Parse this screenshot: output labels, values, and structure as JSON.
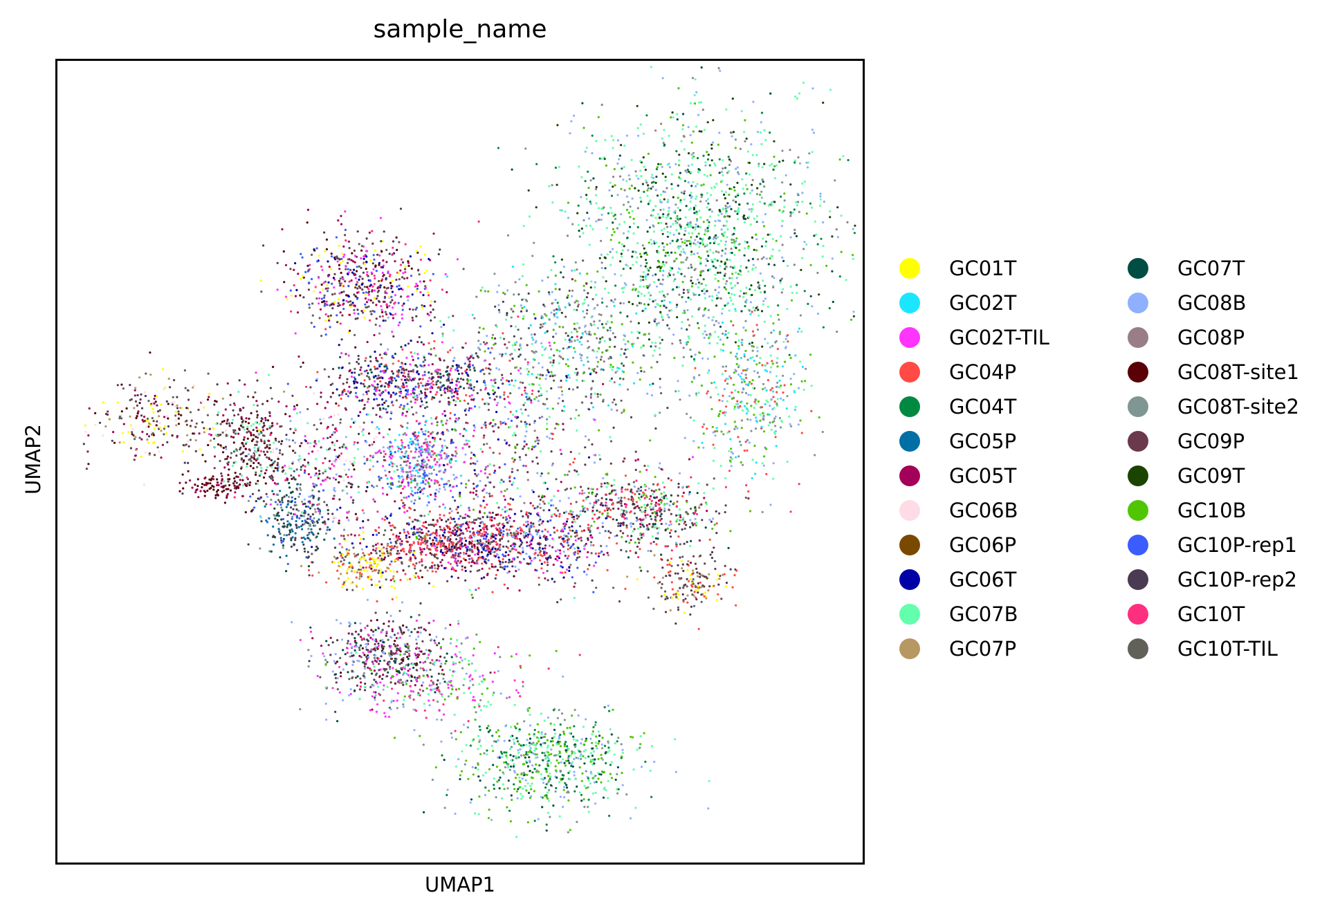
{
  "chart_data": {
    "type": "scatter",
    "title": "sample_name",
    "xlabel": "UMAP1",
    "ylabel": "UMAP2",
    "xticks": [],
    "yticks": [],
    "grid": false,
    "legend_placement": "right, outside plot, two columns",
    "legend": [
      {
        "name": "GC01T",
        "color": "#ffff00"
      },
      {
        "name": "GC02T",
        "color": "#1ce6ff"
      },
      {
        "name": "GC02T-TIL",
        "color": "#ff34ff"
      },
      {
        "name": "GC04P",
        "color": "#ff4a46"
      },
      {
        "name": "GC04T",
        "color": "#008941"
      },
      {
        "name": "GC05P",
        "color": "#006fa6"
      },
      {
        "name": "GC05T",
        "color": "#a30059"
      },
      {
        "name": "GC06B",
        "color": "#ffdbe5"
      },
      {
        "name": "GC06P",
        "color": "#7a4900"
      },
      {
        "name": "GC06T",
        "color": "#0000a6"
      },
      {
        "name": "GC07B",
        "color": "#63ffac"
      },
      {
        "name": "GC07P",
        "color": "#b79762"
      },
      {
        "name": "GC07T",
        "color": "#004d43"
      },
      {
        "name": "GC08B",
        "color": "#8fb0ff"
      },
      {
        "name": "GC08P",
        "color": "#997d87"
      },
      {
        "name": "GC08T-site1",
        "color": "#5a0007"
      },
      {
        "name": "GC08T-site2",
        "color": "#809693"
      },
      {
        "name": "GC09P",
        "color": "#6a3a4c"
      },
      {
        "name": "GC09T",
        "color": "#1b4400"
      },
      {
        "name": "GC10B",
        "color": "#4fc601"
      },
      {
        "name": "GC10P-rep1",
        "color": "#3b5dff"
      },
      {
        "name": "GC10P-rep2",
        "color": "#4a3b53"
      },
      {
        "name": "GC10T",
        "color": "#ff2f80"
      },
      {
        "name": "GC10T-TIL",
        "color": "#61615a"
      }
    ],
    "point_density_regions": [
      {
        "cx": 0.79,
        "cy": 0.78,
        "rx": 0.17,
        "ry": 0.16,
        "weight": 0.16,
        "palette": [
          10,
          10,
          10,
          10,
          13,
          13,
          16,
          19,
          4,
          14,
          12,
          18
        ]
      },
      {
        "cx": 0.63,
        "cy": 0.64,
        "rx": 0.14,
        "ry": 0.1,
        "weight": 0.06,
        "palette": [
          10,
          13,
          1,
          16,
          14,
          19,
          21,
          23
        ]
      },
      {
        "cx": 0.38,
        "cy": 0.72,
        "rx": 0.09,
        "ry": 0.06,
        "weight": 0.06,
        "palette": [
          22,
          17,
          20,
          23,
          15,
          6,
          9,
          0,
          21,
          2
        ]
      },
      {
        "cx": 0.44,
        "cy": 0.6,
        "rx": 0.11,
        "ry": 0.04,
        "weight": 0.06,
        "palette": [
          9,
          20,
          21,
          23,
          17,
          3,
          6,
          12,
          2
        ]
      },
      {
        "cx": 0.45,
        "cy": 0.5,
        "rx": 0.05,
        "ry": 0.05,
        "weight": 0.04,
        "palette": [
          2,
          13,
          20,
          1,
          22,
          16
        ]
      },
      {
        "cx": 0.49,
        "cy": 0.4,
        "rx": 0.11,
        "ry": 0.04,
        "weight": 0.08,
        "palette": [
          3,
          3,
          3,
          23,
          21,
          6,
          17,
          15,
          20,
          22,
          9
        ]
      },
      {
        "cx": 0.72,
        "cy": 0.44,
        "rx": 0.1,
        "ry": 0.05,
        "weight": 0.06,
        "palette": [
          3,
          23,
          21,
          17,
          22,
          6,
          12,
          10,
          13,
          19
        ]
      },
      {
        "cx": 0.78,
        "cy": 0.35,
        "rx": 0.05,
        "ry": 0.04,
        "weight": 0.02,
        "palette": [
          0,
          11,
          23,
          21,
          3,
          17
        ]
      },
      {
        "cx": 0.39,
        "cy": 0.37,
        "rx": 0.06,
        "ry": 0.03,
        "weight": 0.02,
        "palette": [
          0,
          0,
          11,
          23,
          3
        ]
      },
      {
        "cx": 0.41,
        "cy": 0.26,
        "rx": 0.08,
        "ry": 0.05,
        "weight": 0.05,
        "palette": [
          21,
          17,
          23,
          6,
          2,
          12,
          13,
          15
        ]
      },
      {
        "cx": 0.61,
        "cy": 0.13,
        "rx": 0.11,
        "ry": 0.06,
        "weight": 0.07,
        "palette": [
          19,
          10,
          13,
          16,
          10,
          19,
          4,
          12
        ]
      },
      {
        "cx": 0.13,
        "cy": 0.55,
        "rx": 0.09,
        "ry": 0.05,
        "weight": 0.03,
        "palette": [
          0,
          11,
          15,
          6,
          17,
          21,
          7,
          23
        ]
      },
      {
        "cx": 0.24,
        "cy": 0.52,
        "rx": 0.04,
        "ry": 0.06,
        "weight": 0.03,
        "palette": [
          15,
          15,
          6,
          17,
          21,
          23,
          10
        ]
      },
      {
        "cx": 0.2,
        "cy": 0.47,
        "rx": 0.04,
        "ry": 0.015,
        "weight": 0.01,
        "palette": [
          15,
          15,
          15,
          6
        ]
      },
      {
        "cx": 0.3,
        "cy": 0.43,
        "rx": 0.05,
        "ry": 0.05,
        "weight": 0.03,
        "palette": [
          5,
          12,
          16,
          20,
          21
        ]
      },
      {
        "cx": 0.86,
        "cy": 0.58,
        "rx": 0.07,
        "ry": 0.1,
        "weight": 0.04,
        "palette": [
          10,
          13,
          1,
          16,
          19,
          3
        ]
      },
      {
        "cx": 0.54,
        "cy": 0.52,
        "rx": 0.14,
        "ry": 0.16,
        "weight": 0.07,
        "palette": [
          10,
          13,
          20,
          21,
          23,
          3,
          2,
          6,
          17,
          9,
          19,
          22,
          14
        ]
      },
      {
        "cx": 0.33,
        "cy": 0.5,
        "rx": 0.1,
        "ry": 0.08,
        "weight": 0.04,
        "palette": [
          15,
          6,
          21,
          23,
          2,
          22,
          7,
          10,
          13
        ]
      },
      {
        "cx": 0.46,
        "cy": 0.23,
        "rx": 0.12,
        "ry": 0.05,
        "weight": 0.03,
        "palette": [
          13,
          10,
          19,
          16,
          2,
          22
        ]
      },
      {
        "cx": 0.59,
        "cy": 0.4,
        "rx": 0.1,
        "ry": 0.05,
        "weight": 0.04,
        "palette": [
          3,
          23,
          21,
          20,
          9,
          6,
          2,
          13
        ]
      }
    ]
  }
}
